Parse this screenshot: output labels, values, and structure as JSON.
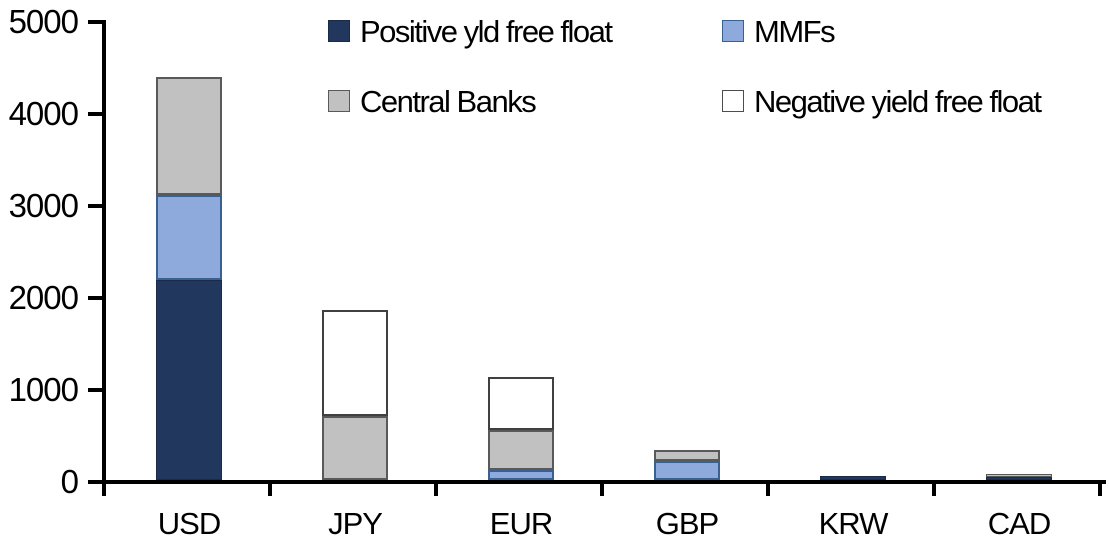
{
  "chart_data": {
    "type": "bar",
    "stacked": true,
    "categories": [
      "USD",
      "JPY",
      "EUR",
      "GBP",
      "KRW",
      "CAD"
    ],
    "series": [
      {
        "name": "Positive yld free float",
        "color": "#21375d",
        "border_color": "#1a2b47",
        "values": [
          2170,
          0,
          0,
          0,
          45,
          30
        ]
      },
      {
        "name": "MMFs",
        "color": "#8ea9db",
        "border_color": "#39618f",
        "values": [
          930,
          0,
          110,
          210,
          0,
          0
        ]
      },
      {
        "name": "Central Banks",
        "color": "#c1c1c1",
        "border_color": "#595959",
        "values": [
          1280,
          700,
          430,
          120,
          0,
          30
        ]
      },
      {
        "name": "Negative yield free float",
        "color": "#ffffff",
        "border_color": "#404040",
        "values": [
          0,
          1150,
          580,
          0,
          0,
          0
        ]
      }
    ],
    "totals": {
      "USD": 4380,
      "JPY": 1850,
      "EUR": 1120,
      "GBP": 330,
      "KRW": 45,
      "CAD": 60
    },
    "ylim": [
      0,
      5000
    ],
    "yticks": [
      0,
      1000,
      2000,
      3000,
      4000,
      5000
    ],
    "grid": false,
    "legend_position": "top",
    "legend_layout": [
      [
        "Positive yld free float",
        "MMFs"
      ],
      [
        "Central Banks",
        "Negative yield free float"
      ]
    ]
  },
  "colors": {
    "axis": "#000000",
    "text": "#000000",
    "background": "#ffffff"
  }
}
